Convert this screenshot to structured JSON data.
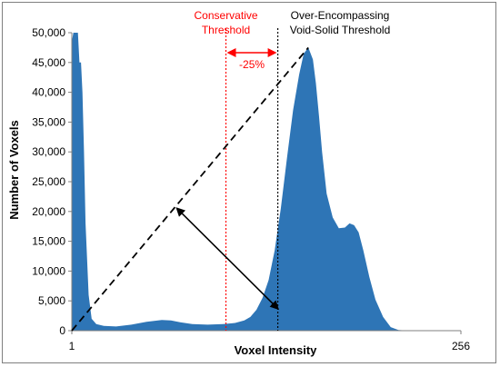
{
  "chart_data": {
    "type": "area",
    "title": "",
    "xlabel": "Voxel Intensity",
    "ylabel": "Number of Voxels",
    "xlim": [
      1,
      256
    ],
    "ylim": [
      0,
      50000
    ],
    "x_tick_labels": [
      "1",
      "256"
    ],
    "y_ticks": [
      0,
      5000,
      10000,
      15000,
      20000,
      25000,
      30000,
      35000,
      40000,
      45000,
      50000
    ],
    "y_tick_labels": [
      "0",
      "5,000",
      "10,000",
      "15,000",
      "20,000",
      "25,000",
      "30,000",
      "35,000",
      "40,000",
      "45,000",
      "50,000"
    ],
    "grid": false,
    "legend": "none",
    "series": [
      {
        "color": "#2e75b6",
        "x": [
          1,
          2,
          3,
          5,
          6,
          7,
          8,
          9,
          10,
          12,
          14,
          17,
          22,
          30,
          40,
          50,
          60,
          66,
          72,
          80,
          90,
          100,
          108,
          114,
          118,
          122,
          126,
          130,
          134,
          138,
          142,
          146,
          150,
          153,
          156,
          159,
          161,
          163,
          165,
          168,
          172,
          176,
          180,
          183,
          186,
          189,
          192,
          196,
          200,
          205,
          210,
          215,
          222,
          230,
          240,
          256
        ],
        "y": [
          48500,
          50000,
          50000,
          50000,
          45000,
          45000,
          40000,
          30000,
          18000,
          6000,
          2000,
          1100,
          800,
          700,
          1000,
          1500,
          1800,
          1700,
          1400,
          1100,
          1000,
          1100,
          1300,
          1700,
          2300,
          3500,
          5500,
          8500,
          13500,
          20500,
          29000,
          37000,
          43000,
          46500,
          47500,
          45500,
          41500,
          36000,
          30000,
          23000,
          19000,
          17200,
          17300,
          18000,
          17700,
          16500,
          13500,
          9000,
          5200,
          2300,
          600,
          100,
          0,
          0,
          0,
          0
        ]
      }
    ],
    "annotations": {
      "conservative_label_line1": "Conservative",
      "conservative_label_line2": "Threshold",
      "conservative_x": 102,
      "conservative_color": "#ff0000",
      "encompassing_label_line1": "Over-Encompassing",
      "encompassing_label_line2": "Void-Solid Threshold",
      "encompassing_x": 136,
      "encompassing_color": "#000000",
      "offset_label": "-25%",
      "offset_color": "#ff0000",
      "diagonal_line": {
        "from": [
          1,
          0
        ],
        "to": [
          156,
          47500
        ]
      },
      "perpendicular_arrow": {
        "from": [
          70,
          20500
        ],
        "to": [
          136,
          3700
        ]
      }
    }
  }
}
